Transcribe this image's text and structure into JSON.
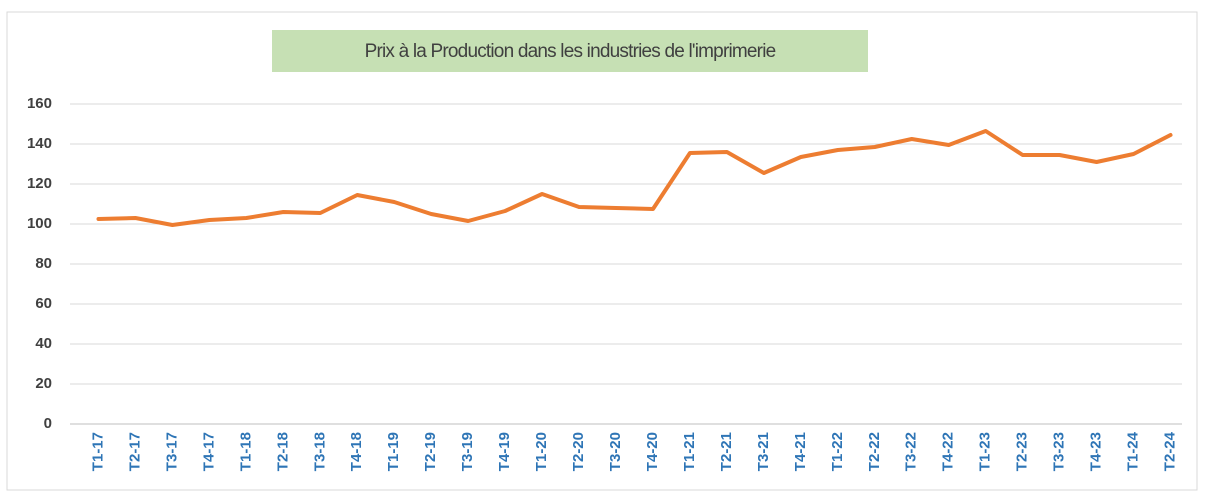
{
  "chart_data": {
    "type": "line",
    "title": "Prix à la Production dans les industries de l'imprimerie",
    "categories": [
      "T1-17",
      "T2-17",
      "T3-17",
      "T4-17",
      "T1-18",
      "T2-18",
      "T3-18",
      "T4-18",
      "T1-19",
      "T2-19",
      "T3-19",
      "T4-19",
      "T1-20",
      "T2-20",
      "T3-20",
      "T4-20",
      "T1-21",
      "T2-21",
      "T3-21",
      "T4-21",
      "T1-22",
      "T2-22",
      "T3-22",
      "T4-22",
      "T1-23",
      "T2-23",
      "T3-23",
      "T4-23",
      "T1-24",
      "T2-24"
    ],
    "series": [
      {
        "name": "Prix à la Production",
        "color": "#ed7d31",
        "values": [
          102.5,
          103,
          99.5,
          102,
          103,
          106,
          105.5,
          114.5,
          111,
          105,
          101.5,
          106.5,
          115,
          108.5,
          108,
          107.5,
          135.5,
          136,
          125.5,
          133.5,
          137,
          138.5,
          142.5,
          139.5,
          146.5,
          134.5,
          134.5,
          131,
          135,
          144.5
        ]
      }
    ],
    "ylim": [
      0,
      160
    ],
    "yticks": [
      0,
      20,
      40,
      60,
      80,
      100,
      120,
      140,
      160
    ],
    "grid": true
  }
}
